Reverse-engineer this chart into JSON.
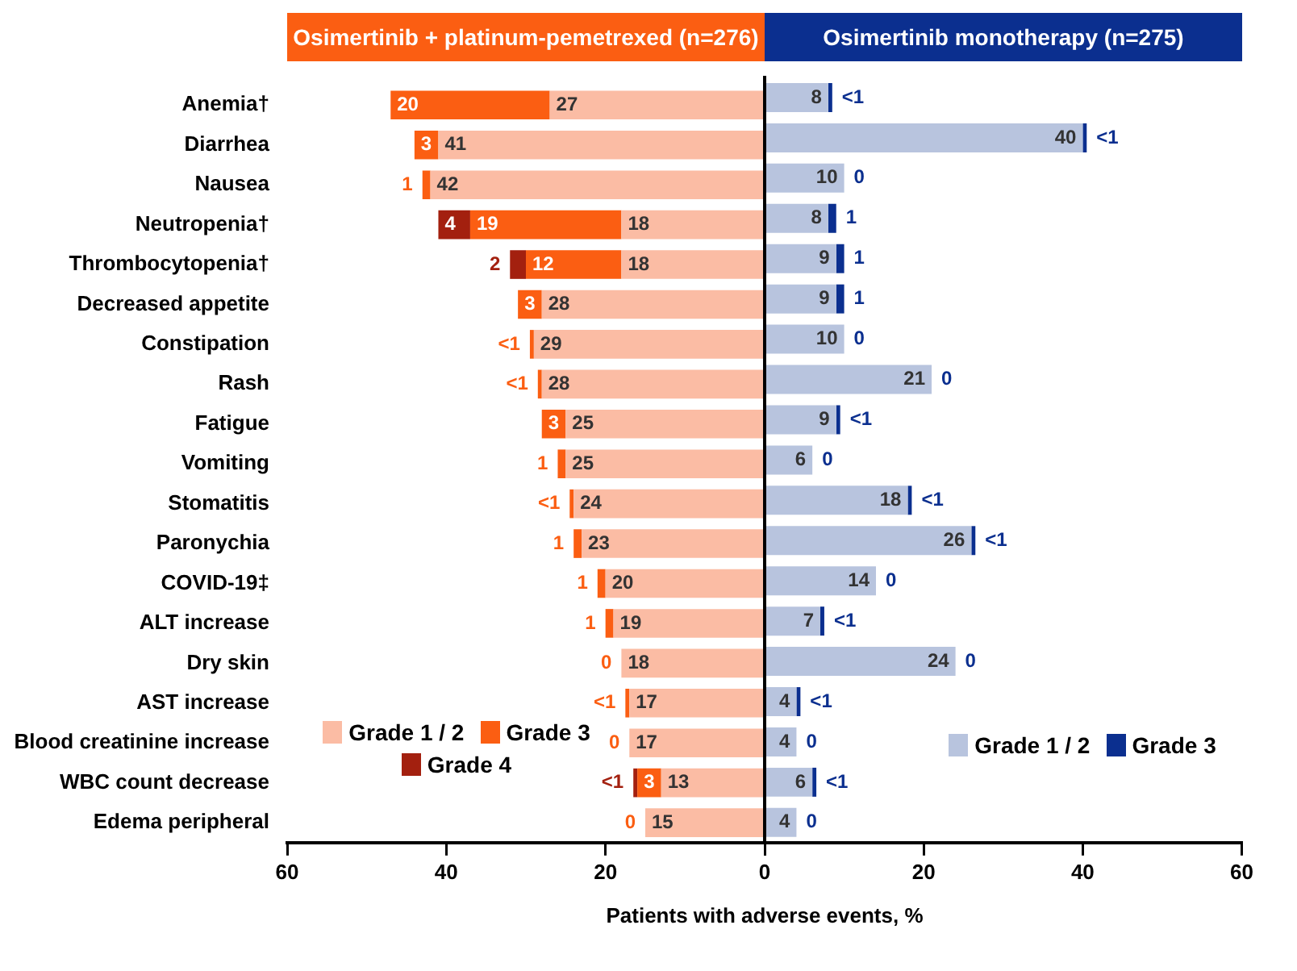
{
  "chart_data": [
    {
      "type": "bar",
      "orientation": "horizontal",
      "stacked": true,
      "title": "Osimertinib + platinum-pemetrexed (n=276)",
      "xlabel": "Patients with adverse events, %",
      "categories": [
        "Anemia†",
        "Diarrhea",
        "Nausea",
        "Neutropenia†",
        "Thrombocytopenia†",
        "Decreased appetite",
        "Constipation",
        "Rash",
        "Fatigue",
        "Vomiting",
        "Stomatitis",
        "Paronychia",
        "COVID-19‡",
        "ALT increase",
        "Dry skin",
        "AST increase",
        "Blood creatinine increase",
        "WBC count decrease",
        "Edema peripheral"
      ],
      "series": [
        {
          "name": "Grade 1 / 2",
          "color": "#fbbca4",
          "values": [
            27,
            41,
            42,
            18,
            18,
            28,
            29,
            28,
            25,
            25,
            24,
            23,
            20,
            19,
            18,
            17,
            17,
            13,
            15
          ],
          "value_labels": [
            "27",
            "41",
            "42",
            "18",
            "18",
            "28",
            "29",
            "28",
            "25",
            "25",
            "24",
            "23",
            "20",
            "19",
            "18",
            "17",
            "17",
            "13",
            "15"
          ]
        },
        {
          "name": "Grade 3",
          "color": "#fb5e12",
          "values": [
            20,
            3,
            1,
            19,
            12,
            3,
            0.5,
            0.5,
            3,
            1,
            0.5,
            1,
            1,
            1,
            0,
            0.5,
            0,
            3,
            0
          ],
          "value_labels": [
            "20",
            "3",
            "1",
            "19",
            "12",
            "3",
            "<1",
            "<1",
            "3",
            "1",
            "<1",
            "1",
            "1",
            "1",
            "0",
            "<1",
            "0",
            "3",
            "0"
          ]
        },
        {
          "name": "Grade 4",
          "color": "#a3200f",
          "values": [
            null,
            null,
            null,
            4,
            2,
            null,
            null,
            null,
            null,
            null,
            null,
            null,
            null,
            null,
            null,
            null,
            null,
            0.5,
            null
          ],
          "value_labels": [
            null,
            null,
            null,
            "4",
            "2",
            null,
            null,
            null,
            null,
            null,
            null,
            null,
            null,
            null,
            null,
            null,
            null,
            "<1",
            null
          ]
        }
      ],
      "xlim": [
        60,
        0
      ],
      "xticks": [
        60,
        40,
        20,
        0
      ],
      "legend": "bottom left"
    },
    {
      "type": "bar",
      "orientation": "horizontal",
      "stacked": true,
      "title": "Osimertinib monotherapy (n=275)",
      "series": [
        {
          "name": "Grade 1 / 2",
          "color": "#b8c4de",
          "values": [
            8,
            40,
            10,
            8,
            9,
            9,
            10,
            21,
            9,
            6,
            18,
            26,
            14,
            7,
            24,
            4,
            4,
            6,
            4
          ],
          "value_labels": [
            "8",
            "40",
            "10",
            "8",
            "9",
            "9",
            "10",
            "21",
            "9",
            "6",
            "18",
            "26",
            "14",
            "7",
            "24",
            "4",
            "4",
            "6",
            "4"
          ]
        },
        {
          "name": "Grade 3",
          "color": "#0b2f8f",
          "values": [
            0.5,
            0.5,
            0,
            1,
            1,
            1,
            0,
            0,
            0.5,
            0,
            0.5,
            0.5,
            0,
            0.5,
            0,
            0.5,
            0,
            0.5,
            0
          ],
          "value_labels": [
            "<1",
            "<1",
            "0",
            "1",
            "1",
            "1",
            "0",
            "0",
            "<1",
            "0",
            "<1",
            "<1",
            "0",
            "<1",
            "0",
            "<1",
            "0",
            "<1",
            "0"
          ]
        }
      ],
      "xlim": [
        0,
        60
      ],
      "xticks": [
        {
          "value": 0,
          "label": null
        },
        20,
        40,
        60
      ],
      "legend": "bottom right",
      "tick_labels": "x"
    }
  ]
}
